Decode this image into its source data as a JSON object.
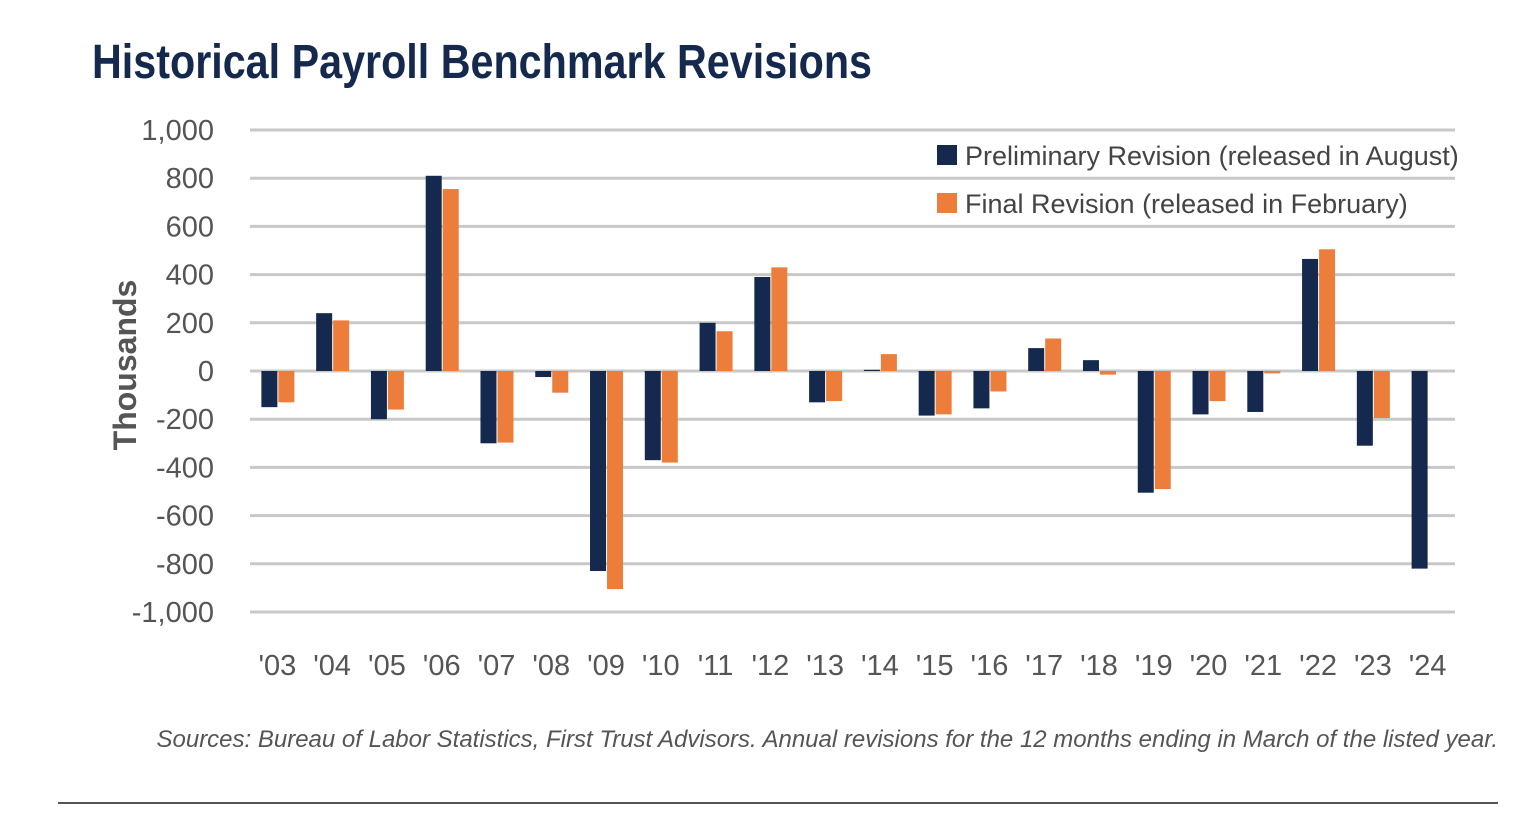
{
  "chart_data": {
    "type": "bar",
    "title": "Historical Payroll Benchmark Revisions",
    "y_label": "Thousands",
    "categories": [
      "'03",
      "'04",
      "'05",
      "'06",
      "'07",
      "'08",
      "'09",
      "'10",
      "'11",
      "'12",
      "'13",
      "'14",
      "'15",
      "'16",
      "'17",
      "'18",
      "'19",
      "'20",
      "'21",
      "'22",
      "'23",
      "'24"
    ],
    "series": [
      {
        "name": "Preliminary Revision (released in August)",
        "color": "#14294d",
        "values": [
          -150,
          240,
          -200,
          810,
          -300,
          -25,
          -830,
          -370,
          200,
          390,
          -130,
          5,
          -185,
          -155,
          95,
          45,
          -505,
          -180,
          -170,
          465,
          -310,
          -820
        ]
      },
      {
        "name": "Final Revision (released in February)",
        "color": "#ed7d3a",
        "values": [
          -130,
          210,
          -160,
          755,
          -297,
          -90,
          -905,
          -380,
          165,
          430,
          -125,
          70,
          -180,
          -85,
          135,
          -15,
          -490,
          -125,
          -10,
          505,
          -195,
          null
        ]
      }
    ],
    "ylim": [
      -1000,
      1000
    ],
    "yticks": [
      {
        "value": -1000,
        "label": "-1,000"
      },
      -800,
      -600,
      -400,
      -200,
      0,
      200,
      400,
      600,
      800,
      {
        "value": 1000,
        "label": "1,000"
      }
    ],
    "grid": true,
    "legend": "upper right",
    "source": "Sources: Bureau of Labor Statistics, First Trust Advisors. Annual revisions for the 12 months ending in March of the listed year."
  }
}
